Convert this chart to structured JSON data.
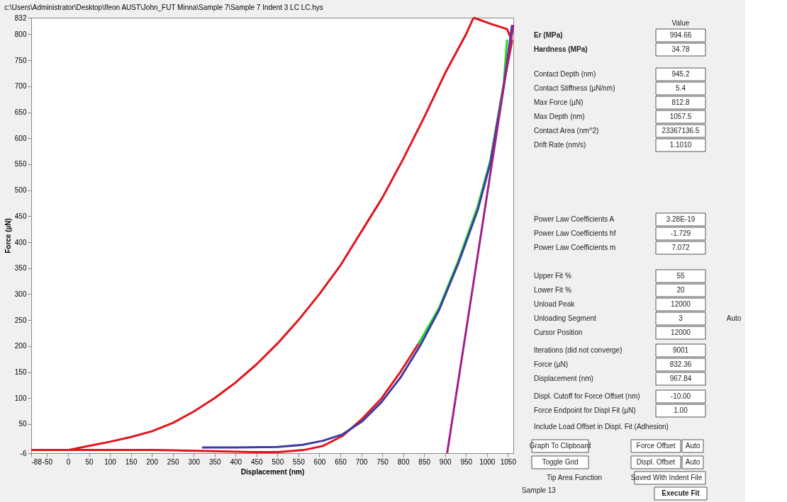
{
  "chart_data": [
    {
      "type": "line",
      "title": "c:\\Users\\Administrator\\Desktop\\Ifeon AUST\\John_FUT Minna\\Sample 7\\Sample 7 Indent 3 LC LC.hys",
      "xlabel": "Displacement (nm)",
      "ylabel": "Force (µN)",
      "xlim": [
        -88,
        1063
      ],
      "ylim": [
        -6,
        832
      ],
      "xticks": [
        -88,
        -50,
        0,
        50,
        100,
        150,
        200,
        250,
        300,
        350,
        400,
        450,
        500,
        550,
        600,
        650,
        700,
        750,
        800,
        850,
        900,
        950,
        1000,
        1050
      ],
      "yticks": [
        -6,
        50,
        100,
        150,
        200,
        250,
        300,
        350,
        400,
        450,
        500,
        550,
        600,
        650,
        700,
        750,
        800,
        832
      ],
      "grid": false,
      "legend": false,
      "series": [
        {
          "color": "#e3141c",
          "x": [
            -88,
            -40,
            0,
            50,
            100,
            150,
            200,
            250,
            300,
            350,
            400,
            450,
            500,
            550,
            600,
            650,
            700,
            750,
            800,
            850,
            900,
            950,
            968
          ],
          "values": [
            0,
            0,
            0,
            8,
            16,
            25,
            36,
            52,
            74,
            100,
            130,
            165,
            205,
            250,
            300,
            355,
            420,
            485,
            560,
            640,
            725,
            800,
            832
          ]
        },
        {
          "color": "#e3141c",
          "x": [
            968,
            1010,
            1048,
            1060,
            1040,
            1009,
            978,
            932,
            886,
            840,
            794,
            748,
            702,
            655,
            609,
            563,
            502,
            440,
            332,
            209,
            100,
            0,
            -88
          ],
          "values": [
            832,
            820,
            810,
            787,
            703,
            560,
            null,
            null,
            null,
            209,
            151,
            99,
            60,
            27,
            8,
            0,
            -4,
            -4,
            -2,
            0,
            0,
            0,
            0
          ]
        },
        {
          "color": "#22dd22",
          "x": [
            836,
            886,
            932,
            978,
            1009,
            1040,
            1048
          ],
          "values": [
            204,
            274,
            365,
            469,
            560,
            703,
            790
          ]
        },
        {
          "color": "#3a3aa8",
          "x": [
            320,
            400,
            500,
            560,
            609,
            655,
            702,
            748,
            794,
            840,
            886,
            932,
            978,
            1009,
            1040,
            1060
          ],
          "values": [
            5,
            5,
            6,
            10,
            18,
            30,
            55,
            92,
            140,
            200,
            270,
            360,
            462,
            555,
            700,
            818
          ]
        },
        {
          "color": "#a0208a",
          "x": [
            905,
            1063
          ],
          "values": [
            -6,
            818
          ]
        }
      ]
    },
    {
      "type": "other",
      "categories": [
        "Er (MPa)",
        "Hardness (MPa)",
        "Contact Depth (nm)",
        "Contact Stiffness (µN/nm)",
        "Max Force (µN)",
        "Max Depth (nm)",
        "Contact Area (nm^2)",
        "Drift Rate (nm/s)",
        "Power Law Coefficients   A",
        "Power Law Coefficients   hf",
        "Power Law Coefficients   m",
        "Upper Fit %",
        "Lower Fit %",
        "Unload Peak",
        "Unloading Segment",
        "Cursor Position",
        "Iterations (did not converge)",
        "Force (µN)",
        "Displacement (nm)",
        "Displ. Cutoff for Force Offset (nm)",
        "Force Endpoint for Displ Fit (µN)",
        "Include Load Offset in Displ. Fit (Adhesion)"
      ],
      "value_labels": [
        "994.66",
        "34.78",
        "945.2",
        "5.4",
        "812.8",
        "1057.5",
        "23367136.5",
        "1.1010",
        "3.28E-19",
        "-1.729",
        "7.072",
        "55",
        "20",
        "12000",
        "3",
        "12000",
        "9001",
        "832.36",
        "967.84",
        "-10.00",
        "1.00",
        null
      ],
      "annotations": [
        "Value",
        "Auto",
        "Graph To Clipboard",
        "Toggle Grid",
        "Force Offset",
        "Auto",
        "Displ. Offset",
        "Auto",
        "Tip Area Function",
        "Saved With Indent File",
        "Sample 13",
        "Execute Fit"
      ]
    }
  ]
}
